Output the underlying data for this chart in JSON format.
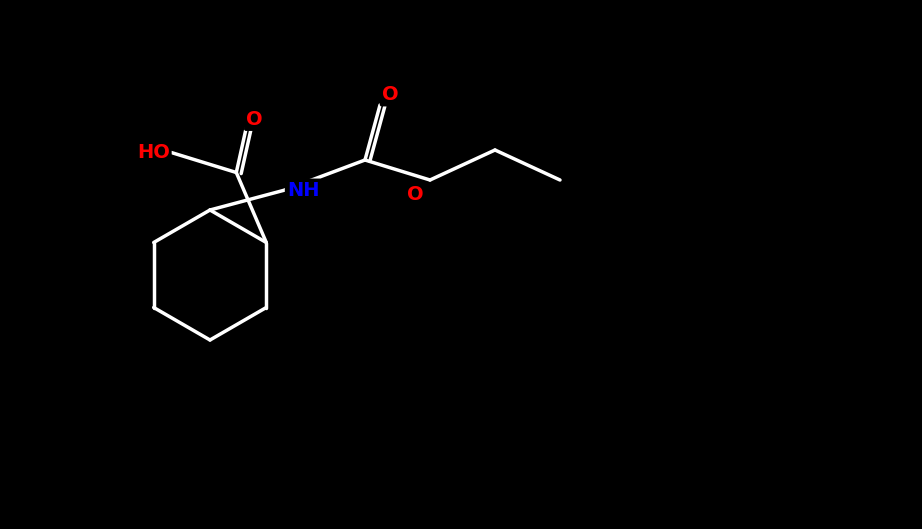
{
  "bg_color": "#000000",
  "bond_color": "#ffffff",
  "atom_colors": {
    "O": "#ff0000",
    "N": "#0000ff",
    "C": "#ffffff",
    "H": "#ffffff"
  },
  "figsize": [
    9.22,
    5.29
  ],
  "dpi": 100
}
